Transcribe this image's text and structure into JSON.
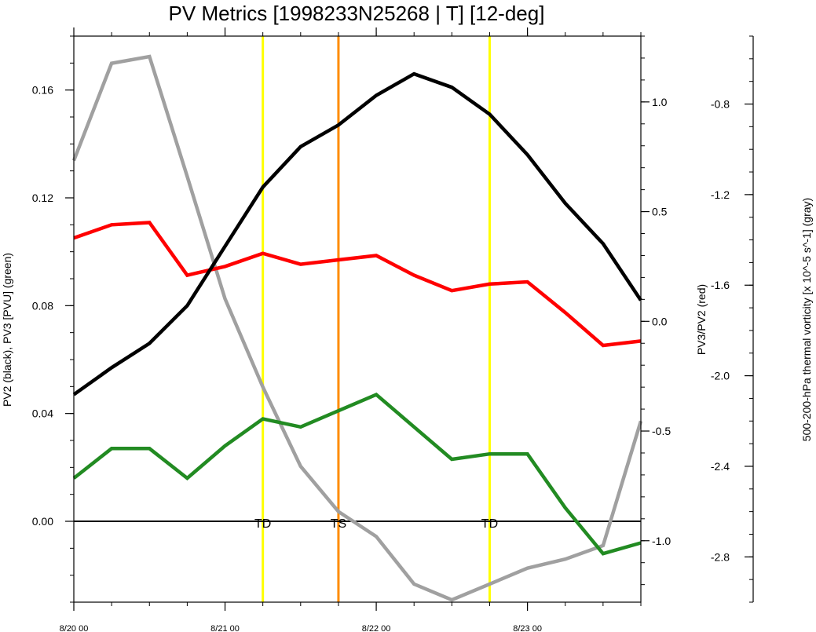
{
  "chart_data": {
    "type": "line",
    "title": "PV Metrics [1998233N25268 | T] [12-deg]",
    "xlim": [
      0,
      15
    ],
    "x_ticks": [
      {
        "x": 0,
        "label": "8/20 00"
      },
      {
        "x": 4,
        "label": "8/21 00"
      },
      {
        "x": 8,
        "label": "8/22 00"
      },
      {
        "x": 12,
        "label": "8/23 00"
      }
    ],
    "left_axis": {
      "label": "PV2 (black), PV3 [PVU] (green)",
      "ylim": [
        -0.03,
        0.18
      ],
      "ticks": [
        0.0,
        0.04,
        0.08,
        0.12,
        0.16
      ],
      "tick_labels": [
        "0.00",
        "0.04",
        "0.08",
        "0.12",
        "0.16"
      ],
      "minor_step": 0.01
    },
    "right_axis_1": {
      "label": "PV3/PV2 (red)",
      "ylim": [
        -1.28,
        1.3
      ],
      "ticks": [
        -1.0,
        -0.5,
        0.0,
        0.5,
        1.0
      ],
      "tick_labels": [
        "-1.0",
        "-0.5",
        "0.0",
        "0.5",
        "1.0"
      ],
      "minor_step": 0.1
    },
    "right_axis_2": {
      "label": "500-200-hPa thermal vorticity [x 10^-5 s^-1] (gray)",
      "ylim": [
        -3.0,
        -0.5
      ],
      "ticks": [
        -2.8,
        -2.4,
        -2.0,
        -1.6,
        -1.2,
        -0.8
      ],
      "tick_labels": [
        "-2.8",
        "-2.4",
        "-2.0",
        "-1.6",
        "-1.2",
        "-0.8"
      ],
      "minor_step": 0.1
    },
    "series": [
      {
        "name": "PV2",
        "axis": "left",
        "color": "#000000",
        "x": [
          0,
          1,
          2,
          3,
          4,
          5,
          6,
          7,
          8,
          9,
          10,
          11,
          12,
          13,
          14,
          15
        ],
        "values": [
          0.047,
          0.057,
          0.066,
          0.08,
          0.102,
          0.124,
          0.139,
          0.147,
          0.158,
          0.166,
          0.161,
          0.151,
          0.136,
          0.118,
          0.103,
          0.082
        ]
      },
      {
        "name": "PV3",
        "axis": "left",
        "color": "#228b22",
        "x": [
          0,
          1,
          2,
          3,
          4,
          5,
          6,
          7,
          8,
          9,
          10,
          11,
          12,
          13,
          14,
          15
        ],
        "values": [
          0.016,
          0.027,
          0.027,
          0.016,
          0.028,
          0.038,
          0.035,
          0.041,
          0.047,
          0.035,
          0.023,
          0.025,
          0.025,
          0.005,
          -0.012,
          -0.008
        ]
      },
      {
        "name": "PV3/PV2",
        "axis": "right_1",
        "color": "#ff0000",
        "x": [
          0,
          1,
          2,
          3,
          4,
          5,
          6,
          7,
          8,
          9,
          10,
          11,
          12,
          13,
          14,
          15
        ],
        "values": [
          0.38,
          0.44,
          0.45,
          0.21,
          0.25,
          0.31,
          0.26,
          0.28,
          0.3,
          0.21,
          0.14,
          0.17,
          0.18,
          0.04,
          -0.11,
          -0.09
        ]
      },
      {
        "name": "thermal vorticity",
        "axis": "right_2",
        "color": "#a0a0a0",
        "x": [
          0,
          1,
          2,
          3,
          4,
          5,
          6,
          7,
          8,
          9,
          10,
          11,
          12,
          13,
          14,
          15
        ],
        "values": [
          -1.05,
          -0.62,
          -0.59,
          -1.12,
          -1.66,
          -2.05,
          -2.4,
          -2.6,
          -2.71,
          -2.92,
          -2.99,
          -2.92,
          -2.85,
          -2.81,
          -2.75,
          -2.2
        ]
      }
    ],
    "zero_line": {
      "axis": "left",
      "value": 0.0,
      "color": "#000000"
    },
    "vertical_markers": [
      {
        "x": 5,
        "label": "TD",
        "color": "#ffff00"
      },
      {
        "x": 7,
        "label": "TS",
        "color": "#ff8c00"
      },
      {
        "x": 11,
        "label": "TD",
        "color": "#ffff00"
      }
    ]
  }
}
